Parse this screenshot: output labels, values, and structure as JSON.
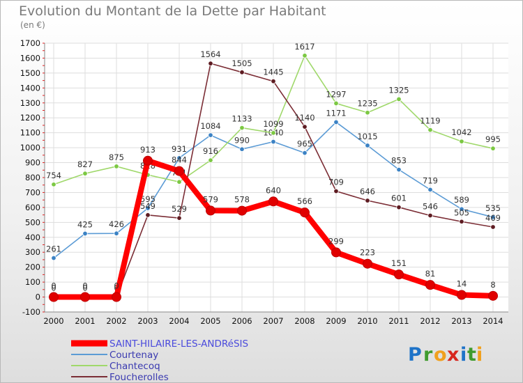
{
  "title": "Evolution du Montant de la Dette par Habitant",
  "unit": "(en €)",
  "logo": {
    "text": "Proxiti",
    "letters": [
      "P",
      "r",
      "o",
      "x",
      "i",
      "t",
      "i"
    ],
    "colors": [
      "#1e73c8",
      "#3f9b2e",
      "#f0a01e",
      "#d7261e",
      "#1e73c8",
      "#3f9b2e",
      "#f0a01e"
    ]
  },
  "chart_data": {
    "type": "line",
    "categories": [
      "2000",
      "2001",
      "2002",
      "2003",
      "2004",
      "2005",
      "2006",
      "2007",
      "2008",
      "2009",
      "2010",
      "2011",
      "2012",
      "2013",
      "2014"
    ],
    "y_ticks": [
      "-100",
      "0",
      "100",
      "200",
      "300",
      "400",
      "500",
      "600",
      "700",
      "800",
      "900",
      "1000",
      "1100",
      "1200",
      "1300",
      "1400",
      "1500",
      "1600",
      "1700"
    ],
    "ylim": [
      -100,
      1700
    ],
    "grid": true,
    "legend_position": "bottom",
    "series": [
      {
        "name": "Courtenay",
        "color": "#5b9bd5",
        "dot": "#3b82c4",
        "values": [
          261,
          425,
          426,
          595,
          931,
          1084,
          990,
          1040,
          965,
          1171,
          1015,
          853,
          719,
          589,
          535
        ]
      },
      {
        "name": "Chantecoq",
        "color": "#9fd86a",
        "dot": "#7cc843",
        "values": [
          754,
          827,
          875,
          818,
          771,
          916,
          1133,
          1099,
          1617,
          1297,
          1235,
          1325,
          1119,
          1042,
          995
        ]
      },
      {
        "name": "Foucherolles",
        "color": "#7b2d35",
        "dot": "#5e1c22",
        "values": [
          0,
          0,
          0,
          549,
          529,
          1564,
          1505,
          1445,
          1140,
          709,
          646,
          601,
          546,
          505,
          469
        ]
      },
      {
        "name": "SAINT-HILAIRE-LES-ANDRéSIS",
        "color": "#ff0000",
        "dot": "#e00000",
        "values": [
          0,
          0,
          0,
          913,
          844,
          579,
          578,
          640,
          566,
          299,
          223,
          151,
          81,
          14,
          8
        ]
      }
    ],
    "legend": [
      {
        "name": "SAINT-HILAIRE-LES-ANDRéSIS",
        "color": "#ff0000"
      },
      {
        "name": "Courtenay",
        "color": "#5b9bd5"
      },
      {
        "name": "Chantecoq",
        "color": "#9fd86a"
      },
      {
        "name": "Foucherolles",
        "color": "#7b2d35"
      }
    ]
  }
}
